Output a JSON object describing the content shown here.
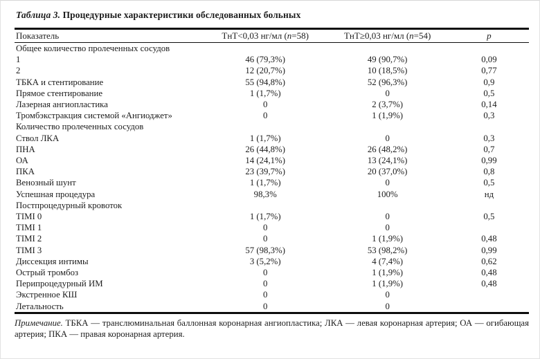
{
  "page": {
    "title_prefix": "Таблица 3.",
    "title_rest": " Процедурные характеристики обследованных больных"
  },
  "table": {
    "header": {
      "col1": "Показатель",
      "col2_prefix": "ТнТ<0,03 нг/мл (",
      "col2_n": "n",
      "col2_rest": "=58)",
      "col3_prefix": "ТнТ≥0,03 нг/мл (",
      "col3_n": "n",
      "col3_rest": "=54)",
      "col4": "p"
    },
    "rows": [
      {
        "type": "section",
        "label": "Общее количество пролеченных сосудов",
        "g1": "",
        "g2": "",
        "p": ""
      },
      {
        "type": "data",
        "label": "1",
        "g1": "46 (79,3%)",
        "g2": "49 (90,7%)",
        "p": "0,09"
      },
      {
        "type": "data",
        "label": "2",
        "g1": "12 (20,7%)",
        "g2": "10 (18,5%)",
        "p": "0,77"
      },
      {
        "type": "data",
        "label": "ТБКА и стентирование",
        "g1": "55 (94,8%)",
        "g2": "52 (96,3%)",
        "p": "0,9"
      },
      {
        "type": "data",
        "label": "Прямое стентирование",
        "g1": "1 (1,7%)",
        "g2": "0",
        "p": "0,5"
      },
      {
        "type": "data",
        "label": "Лазерная ангиопластика",
        "g1": "0",
        "g2": "2 (3,7%)",
        "p": "0,14"
      },
      {
        "type": "data",
        "label": "Тромбэкстракция системой «Ангиоджет»",
        "g1": "0",
        "g2": "1 (1,9%)",
        "p": "0,3"
      },
      {
        "type": "section",
        "label": "Количество пролеченных сосудов",
        "g1": "",
        "g2": "",
        "p": ""
      },
      {
        "type": "data",
        "label": "Ствол ЛКА",
        "g1": "1 (1,7%)",
        "g2": "0",
        "p": "0,3"
      },
      {
        "type": "data",
        "label": "ПНА",
        "g1": "26 (44,8%)",
        "g2": "26 (48,2%)",
        "p": "0,7"
      },
      {
        "type": "data",
        "label": "ОА",
        "g1": "14 (24,1%)",
        "g2": "13 (24,1%)",
        "p": "0,99"
      },
      {
        "type": "data",
        "label": "ПКА",
        "g1": "23 (39,7%)",
        "g2": "20 (37,0%)",
        "p": "0,8"
      },
      {
        "type": "data",
        "label": "Венозный шунт",
        "g1": "1 (1,7%)",
        "g2": "0",
        "p": "0,5"
      },
      {
        "type": "data",
        "label": "Успешная процедура",
        "g1": "98,3%",
        "g2": "100%",
        "p": "нд"
      },
      {
        "type": "section",
        "label": "Постпроцедурный кровоток",
        "g1": "",
        "g2": "",
        "p": ""
      },
      {
        "type": "data",
        "label": "TIMI 0",
        "g1": "1 (1,7%)",
        "g2": "0",
        "p": "0,5"
      },
      {
        "type": "data",
        "label": "TIMI 1",
        "g1": "0",
        "g2": "0",
        "p": ""
      },
      {
        "type": "data",
        "label": "TIMI 2",
        "g1": "0",
        "g2": "1 (1,9%)",
        "p": "0,48"
      },
      {
        "type": "data",
        "label": "TIMI 3",
        "g1": "57 (98,3%)",
        "g2": "53 (98,2%)",
        "p": "0,99"
      },
      {
        "type": "data",
        "label": "Диссекция интимы",
        "g1": "3 (5,2%)",
        "g2": "4 (7,4%)",
        "p": "0,62"
      },
      {
        "type": "data",
        "label": "Острый тромбоз",
        "g1": "0",
        "g2": "1 (1,9%)",
        "p": "0,48"
      },
      {
        "type": "data",
        "label": "Перипроцедурный ИМ",
        "g1": "0",
        "g2": "1 (1,9%)",
        "p": "0,48"
      },
      {
        "type": "data",
        "label": "Экстренное КШ",
        "g1": "0",
        "g2": "0",
        "p": ""
      },
      {
        "type": "data",
        "label": "Летальность",
        "g1": "0",
        "g2": "0",
        "p": ""
      }
    ]
  },
  "footnote": {
    "label": "Примечание.",
    "text": " ТБКА — транслюминальная баллонная коронарная ангиопластика; ЛКА — левая коронарная артерия; ОА — огибающая артерия; ПКА — правая коронарная артерия."
  }
}
